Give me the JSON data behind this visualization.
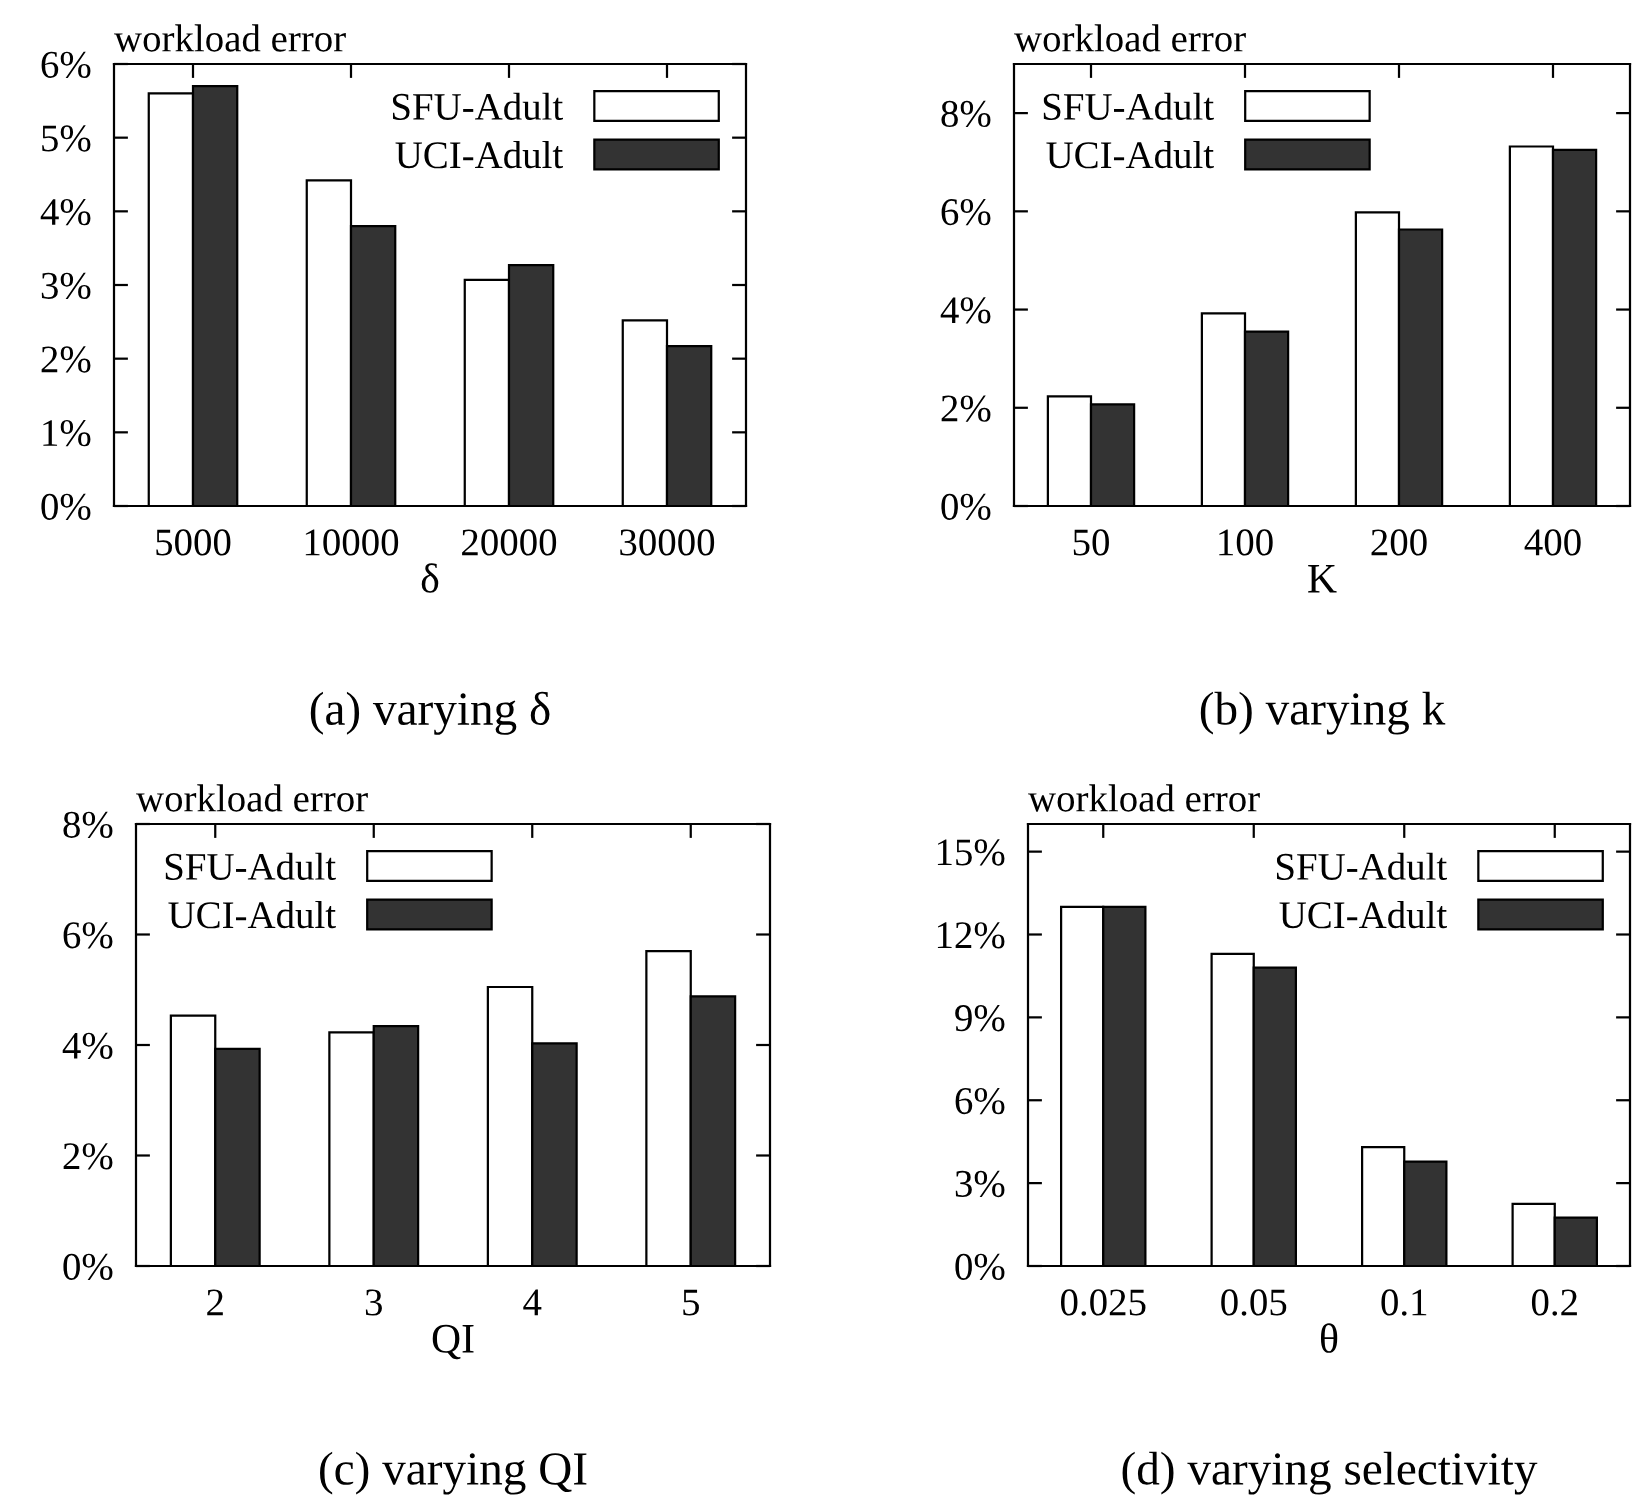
{
  "chart_data": [
    {
      "type": "bar",
      "ylabel": "workload error",
      "xlabel": "δ",
      "annotations": [
        "(a) varying δ"
      ],
      "categories": [
        "5000",
        "10000",
        "20000",
        "30000"
      ],
      "series": [
        {
          "name": "SFU-Adult",
          "color": "#ffffff",
          "values": [
            5.6,
            4.42,
            3.07,
            2.52
          ]
        },
        {
          "name": "UCI-Adult",
          "color": "#333333",
          "values": [
            5.7,
            3.8,
            3.27,
            2.17
          ]
        }
      ],
      "ylim": [
        0,
        6
      ],
      "yticks": [
        {
          "value": 0,
          "label": "0%"
        },
        {
          "value": 1,
          "label": "1%"
        },
        {
          "value": 2,
          "label": "2%"
        },
        {
          "value": 3,
          "label": "3%"
        },
        {
          "value": 4,
          "label": "4%"
        },
        {
          "value": 5,
          "label": "5%"
        },
        {
          "value": 6,
          "label": "6%"
        }
      ],
      "legend": "top right"
    },
    {
      "type": "bar",
      "ylabel": "workload error",
      "xlabel": "K",
      "annotations": [
        "(b) varying k"
      ],
      "categories": [
        "50",
        "100",
        "200",
        "400"
      ],
      "series": [
        {
          "name": "SFU-Adult",
          "color": "#ffffff",
          "values": [
            2.23,
            3.92,
            5.98,
            7.32
          ]
        },
        {
          "name": "UCI-Adult",
          "color": "#333333",
          "values": [
            2.07,
            3.55,
            5.63,
            7.25
          ]
        }
      ],
      "ylim": [
        0,
        9
      ],
      "yticks": [
        {
          "value": 0,
          "label": "0%"
        },
        {
          "value": 2,
          "label": "2%"
        },
        {
          "value": 4,
          "label": "4%"
        },
        {
          "value": 6,
          "label": "6%"
        },
        {
          "value": 8,
          "label": "8%"
        }
      ],
      "legend": "top left"
    },
    {
      "type": "bar",
      "ylabel": "workload error",
      "xlabel": "QI",
      "annotations": [
        "(c) varying QI"
      ],
      "categories": [
        "2",
        "3",
        "4",
        "5"
      ],
      "series": [
        {
          "name": "SFU-Adult",
          "color": "#ffffff",
          "values": [
            4.53,
            4.23,
            5.05,
            5.7
          ]
        },
        {
          "name": "UCI-Adult",
          "color": "#333333",
          "values": [
            3.93,
            4.34,
            4.03,
            4.88
          ]
        }
      ],
      "ylim": [
        0,
        8
      ],
      "yticks": [
        {
          "value": 0,
          "label": "0%"
        },
        {
          "value": 2,
          "label": "2%"
        },
        {
          "value": 4,
          "label": "4%"
        },
        {
          "value": 6,
          "label": "6%"
        },
        {
          "value": 8,
          "label": "8%"
        }
      ],
      "legend": "top left"
    },
    {
      "type": "bar",
      "ylabel": "workload error",
      "xlabel": "θ",
      "annotations": [
        "(d) varying selectivity"
      ],
      "categories": [
        "0.025",
        "0.05",
        "0.1",
        "0.2"
      ],
      "series": [
        {
          "name": "SFU-Adult",
          "color": "#ffffff",
          "values": [
            13.0,
            11.3,
            4.3,
            2.25
          ]
        },
        {
          "name": "UCI-Adult",
          "color": "#333333",
          "values": [
            13.0,
            10.8,
            3.78,
            1.75
          ]
        }
      ],
      "ylim": [
        0,
        16
      ],
      "yticks": [
        {
          "value": 0,
          "label": "0%"
        },
        {
          "value": 3,
          "label": "3%"
        },
        {
          "value": 6,
          "label": "6%"
        },
        {
          "value": 9,
          "label": "9%"
        },
        {
          "value": 12,
          "label": "12%"
        },
        {
          "value": 15,
          "label": "15%"
        }
      ],
      "legend": "top right"
    }
  ]
}
